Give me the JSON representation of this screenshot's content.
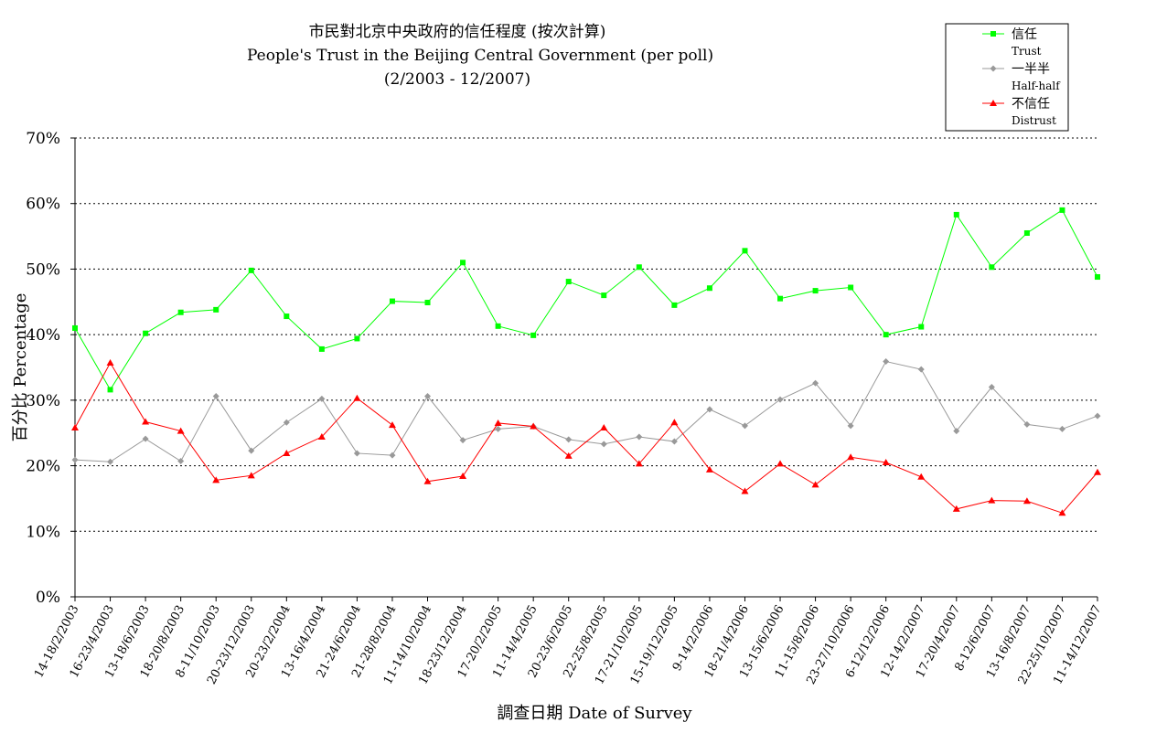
{
  "chart_data": {
    "type": "line",
    "title": "市民對北京中央政府的信任程度 (按次計算)",
    "subtitle": "People's Trust in the Beijing Central Government (per poll)",
    "period": "(2/2003 -  12/2007)",
    "xlabel": "調查日期 Date of Survey",
    "ylabel": "百分比 Percentage",
    "ylim": [
      0,
      70
    ],
    "yticks": [
      0,
      10,
      20,
      30,
      40,
      50,
      60,
      70
    ],
    "ytick_labels": [
      "0%",
      "10%",
      "20%",
      "30%",
      "40%",
      "50%",
      "60%",
      "70%"
    ],
    "grid": "horizontal dotted",
    "legend_position": "top-right",
    "categories": [
      "14-18/2/2003",
      "16-23/4/2003",
      "13-18/6/2003",
      "18-20/8/2003",
      "8-11/10/2003",
      "20-23/12/2003",
      "20-23/2/2004",
      "13-16/4/2004",
      "21-24/6/2004",
      "21-28/8/2004",
      "11-14/10/2004",
      "18-23/12/2004",
      "17-20/2/2005",
      "11-14/4/2005",
      "20-23/6/2005",
      "22-25/8/2005",
      "17-21/10/2005",
      "15-19/12/2005",
      "9-14/2/2006",
      "18-21/4/2006",
      "13-15/6/2006",
      "11-15/8/2006",
      "23-27/10/2006",
      "6-12/12/2006",
      "12-14/2/2007",
      "17-20/4/2007",
      "8-12/6/2007",
      "13-16/8/2007",
      "22-25/10/2007",
      "11-14/12/2007"
    ],
    "series": [
      {
        "name": "信任",
        "name_en": "Trust",
        "color": "#00ff00",
        "marker": "square",
        "values": [
          41.0,
          31.6,
          40.2,
          43.4,
          43.8,
          49.8,
          42.8,
          37.8,
          39.4,
          45.1,
          44.9,
          51.0,
          41.3,
          39.9,
          48.1,
          46.0,
          50.3,
          44.5,
          47.1,
          52.8,
          45.5,
          46.7,
          47.2,
          40.0,
          41.2,
          58.3,
          50.3,
          55.5,
          59.0,
          48.8
        ]
      },
      {
        "name": "一半半",
        "name_en": "Half-half",
        "color": "#999999",
        "marker": "diamond",
        "values": [
          20.9,
          20.6,
          24.1,
          20.7,
          30.6,
          22.3,
          26.6,
          30.2,
          21.9,
          21.6,
          30.6,
          23.9,
          25.6,
          26.0,
          24.0,
          23.3,
          24.4,
          23.7,
          28.6,
          26.1,
          30.1,
          32.6,
          26.1,
          35.9,
          34.7,
          25.3,
          32.0,
          26.3,
          25.6,
          27.6
        ]
      },
      {
        "name": "不信任",
        "name_en": "Distrust",
        "color": "#ff0000",
        "marker": "triangle",
        "values": [
          25.8,
          35.7,
          26.7,
          25.3,
          17.8,
          18.5,
          21.9,
          24.4,
          30.3,
          26.2,
          17.6,
          18.4,
          26.5,
          26.0,
          21.5,
          25.8,
          20.3,
          26.6,
          19.4,
          16.1,
          20.3,
          17.1,
          21.3,
          20.5,
          18.3,
          13.4,
          14.7,
          14.6,
          12.8,
          19.0
        ]
      }
    ]
  }
}
